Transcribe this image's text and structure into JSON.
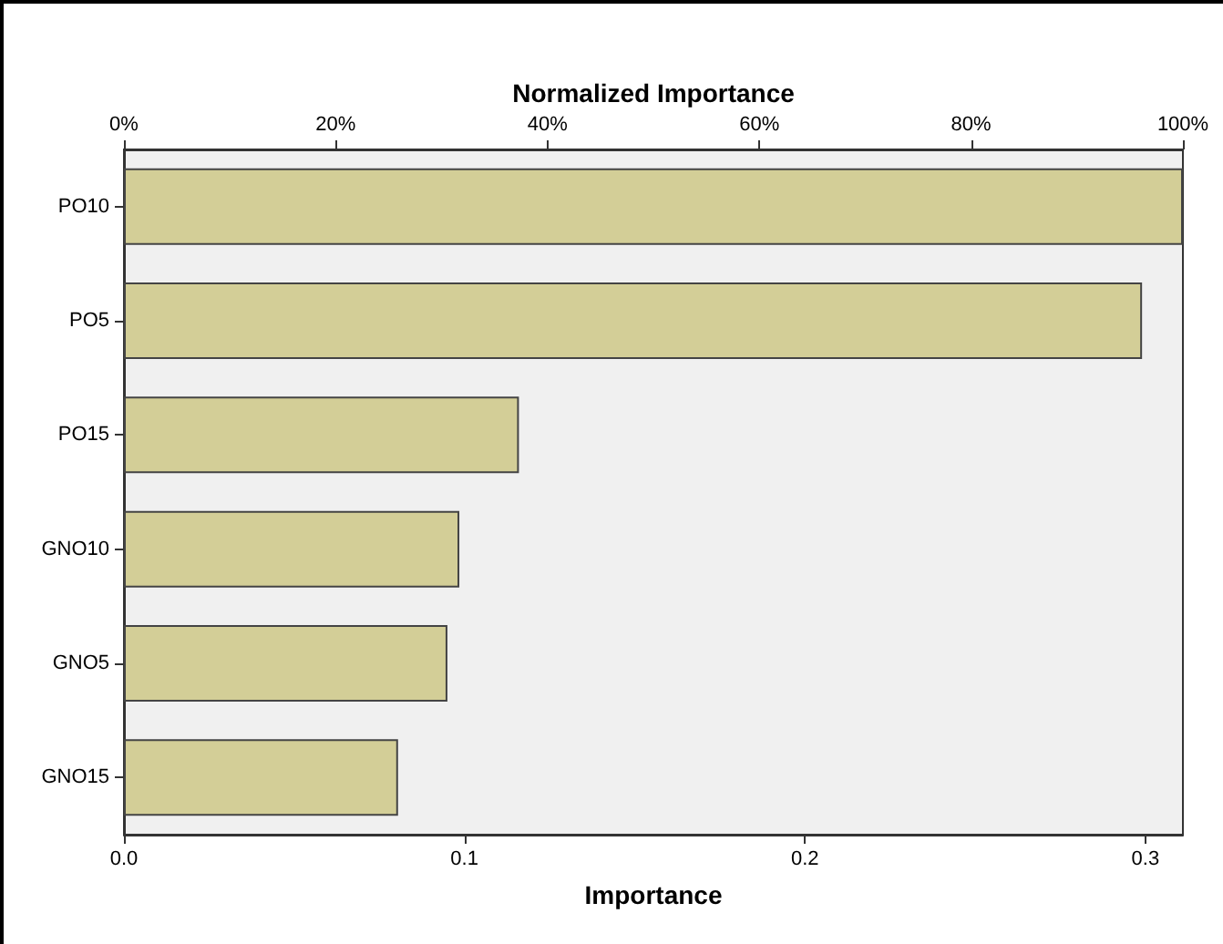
{
  "chart_data": {
    "type": "bar",
    "orientation": "horizontal",
    "xlabel": "Importance",
    "x2label": "Normalized Importance",
    "categories": [
      "PO10",
      "PO5",
      "PO15",
      "GNO10",
      "GNO5",
      "GNO15"
    ],
    "values": [
      0.311,
      0.299,
      0.116,
      0.0985,
      0.095,
      0.0805
    ],
    "color": "#d3ce97",
    "xlim": [
      0,
      0.311
    ],
    "xticks": [
      {
        "value": 0,
        "label": "0.0"
      },
      0.1,
      0.2,
      0.3
    ],
    "x2lim": [
      0,
      100
    ],
    "x2ticks": [
      {
        "value": 0,
        "label": "0%"
      },
      {
        "value": 20,
        "label": "20%"
      },
      {
        "value": 40,
        "label": "40%"
      },
      {
        "value": 60,
        "label": "60%"
      },
      {
        "value": 80,
        "label": "80%"
      },
      {
        "value": 100,
        "label": "100%"
      }
    ],
    "grid": false
  }
}
